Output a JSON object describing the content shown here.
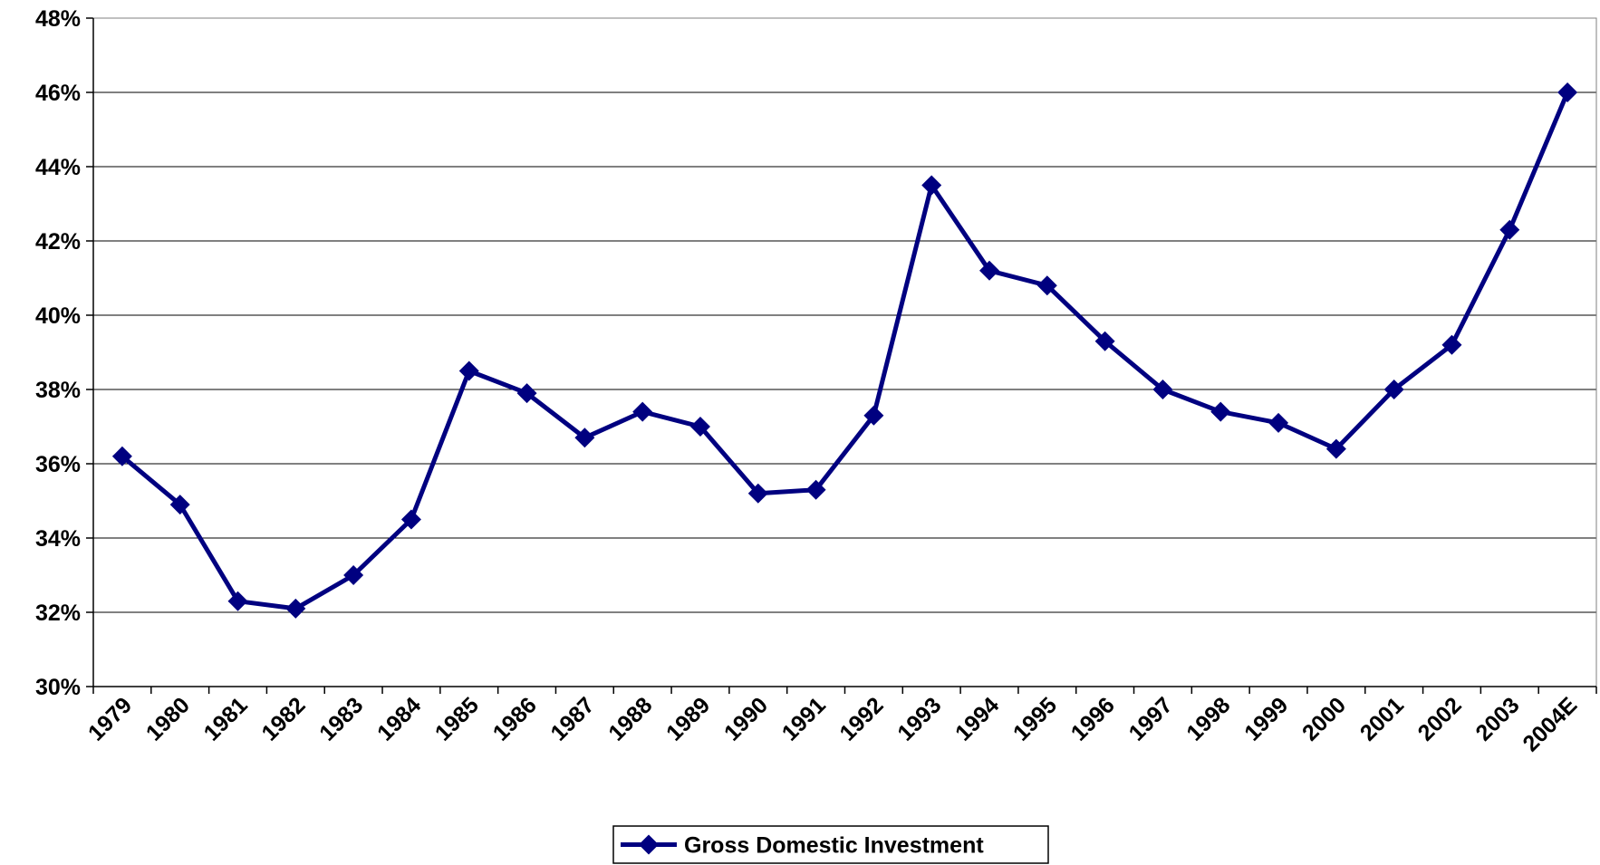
{
  "chart_data": {
    "type": "line",
    "categories": [
      "1979",
      "1980",
      "1981",
      "1982",
      "1983",
      "1984",
      "1985",
      "1986",
      "1987",
      "1988",
      "1989",
      "1990",
      "1991",
      "1992",
      "1993",
      "1994",
      "1995",
      "1996",
      "1997",
      "1998",
      "1999",
      "2000",
      "2001",
      "2002",
      "2003",
      "2004E"
    ],
    "series": [
      {
        "name": "Gross Domestic Investment",
        "color": "#000080",
        "values": [
          36.2,
          34.9,
          32.3,
          32.1,
          33.0,
          34.5,
          38.5,
          37.9,
          36.7,
          37.4,
          37.0,
          35.2,
          35.3,
          37.3,
          43.5,
          41.2,
          40.8,
          39.3,
          38.0,
          37.4,
          37.1,
          36.4,
          38.0,
          39.2,
          42.3,
          46.0
        ]
      }
    ],
    "ylim": [
      30,
      48
    ],
    "yticks": [
      {
        "value": 30,
        "label": "30%"
      },
      {
        "value": 32,
        "label": "32%"
      },
      {
        "value": 34,
        "label": "34%"
      },
      {
        "value": 36,
        "label": "36%"
      },
      {
        "value": 38,
        "label": "38%"
      },
      {
        "value": 40,
        "label": "40%"
      },
      {
        "value": 42,
        "label": "42%"
      },
      {
        "value": 44,
        "label": "44%"
      },
      {
        "value": 46,
        "label": "46%"
      },
      {
        "value": 48,
        "label": "48%"
      }
    ],
    "grid": true,
    "legend": "bottom"
  }
}
